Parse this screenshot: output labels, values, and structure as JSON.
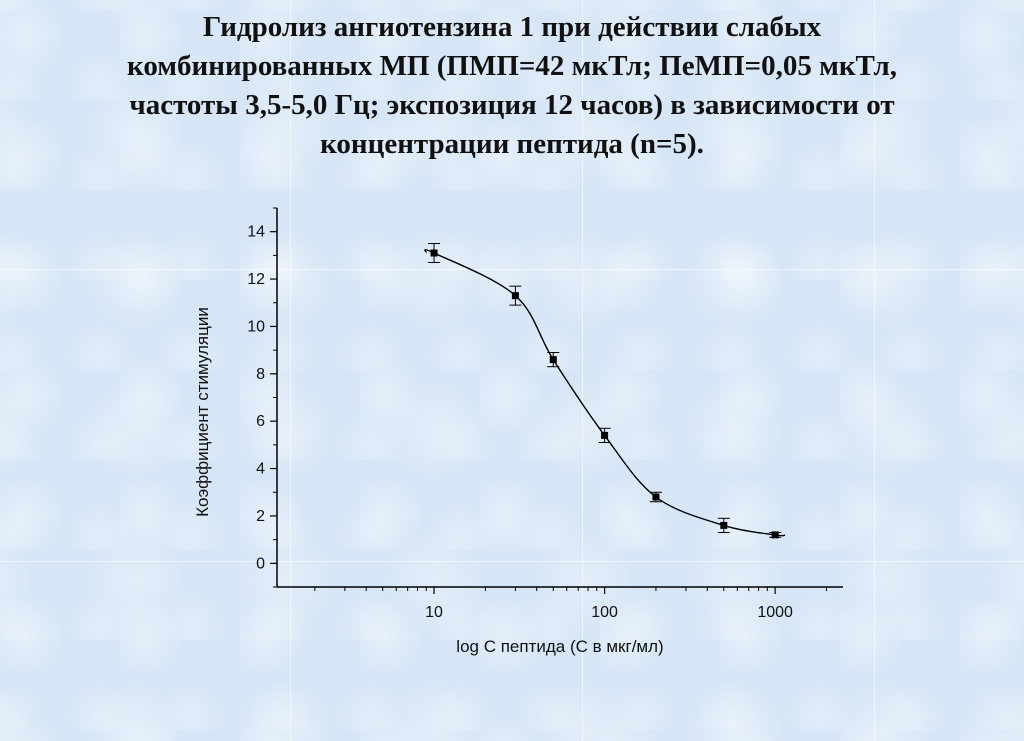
{
  "title": "Гидролиз ангиотензина 1 при действии слабых комбинированных МП (ПМП=42 мкТл; ПеМП=0,05 мкТл, частоты 3,5-5,0 Гц; экспозиция 12 часов) в зависимости от концентрации пептида (n=5).",
  "chart_data": {
    "type": "scatter",
    "title": "Гидролиз ангиотензина 1 при действии слабых комбинированных МП (ПМП=42 мкТл; ПеМП=0,05 мкТл, частоты 3,5-5,0 Гц; экспозиция 12 часов) в зависимости от концентрации пептида (n=5).",
    "xlabel": "log C пептида (C в мкг/мл)",
    "ylabel": "Коэффициент стимуляции",
    "x_scale": "log",
    "xlim": [
      1.2,
      2500
    ],
    "ylim": [
      -1,
      15
    ],
    "x_ticks": [
      10,
      100,
      1000
    ],
    "x_tick_labels": [
      "10",
      "100",
      "1000"
    ],
    "y_ticks": [
      0,
      2,
      4,
      6,
      8,
      10,
      12,
      14
    ],
    "y_tick_labels": [
      "0",
      "2",
      "4",
      "6",
      "8",
      "10",
      "12",
      "14"
    ],
    "grid": false,
    "legend": "none",
    "series": [
      {
        "x": [
          10,
          30,
          50,
          100,
          200,
          500,
          1000
        ],
        "y": [
          13.1,
          11.3,
          8.6,
          5.4,
          2.8,
          1.6,
          1.2
        ],
        "error": [
          0.4,
          0.4,
          0.3,
          0.3,
          0.2,
          0.3,
          0.1
        ],
        "marker": "square",
        "fit_curve": true,
        "color": "#000000"
      }
    ]
  }
}
